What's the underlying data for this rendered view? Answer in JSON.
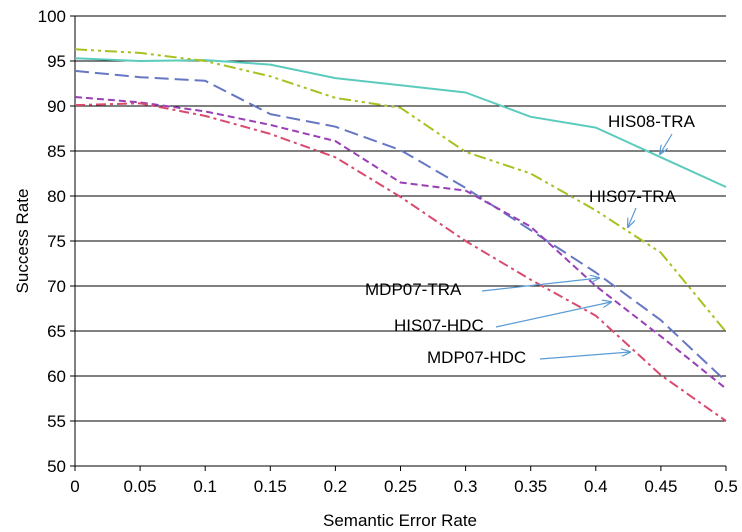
{
  "chart_data": {
    "type": "line",
    "title": "",
    "xlabel": "Semantic Error Rate",
    "ylabel": "Success Rate",
    "xlim": [
      0,
      0.5
    ],
    "ylim": [
      50,
      100
    ],
    "grid": "horizontal",
    "x_ticks": [
      "0",
      "0.05",
      "0.1",
      "0.15",
      "0.2",
      "0.25",
      "0.3",
      "0.35",
      "0.4",
      "0.45",
      "0.5"
    ],
    "y_ticks": [
      "50",
      "55",
      "60",
      "65",
      "70",
      "75",
      "80",
      "85",
      "90",
      "95",
      "100"
    ],
    "x": [
      0,
      0.05,
      0.1,
      0.15,
      0.2,
      0.25,
      0.3,
      0.35,
      0.4,
      0.45,
      0.5
    ],
    "series": [
      {
        "name": "HIS08-TRA",
        "color": "#5bcbbd",
        "dash": "solid",
        "values": [
          95.3,
          95.0,
          95.1,
          94.6,
          93.1,
          92.3,
          91.5,
          88.8,
          87.6,
          84.3,
          81.0
        ]
      },
      {
        "name": "HIS07-TRA",
        "color": "#a8c020",
        "dash": "dash-dot-dot",
        "values": [
          96.3,
          95.9,
          95.0,
          93.3,
          90.9,
          89.8,
          84.9,
          82.5,
          78.4,
          73.7,
          64.9
        ]
      },
      {
        "name": "MDP07-TRA",
        "color": "#6677c4",
        "dash": "long-dash",
        "values": [
          93.9,
          93.2,
          92.8,
          89.1,
          87.7,
          85.1,
          80.9,
          76.2,
          71.5,
          66.2,
          59.4
        ]
      },
      {
        "name": "HIS07-HDC",
        "color": "#9a3fb5",
        "dash": "dash",
        "values": [
          91.0,
          90.4,
          89.4,
          87.9,
          86.1,
          81.5,
          80.6,
          76.6,
          70.0,
          64.4,
          58.6
        ]
      },
      {
        "name": "MDP07-HDC",
        "color": "#d94a6e",
        "dash": "dash-dot",
        "values": [
          90.1,
          90.3,
          88.9,
          86.9,
          84.3,
          79.9,
          75.0,
          70.7,
          66.7,
          60.1,
          55.0
        ]
      }
    ],
    "annotations": [
      {
        "text": "HIS08-TRA",
        "series": "HIS08-TRA"
      },
      {
        "text": "HIS07-TRA",
        "series": "HIS07-TRA"
      },
      {
        "text": "MDP07-TRA",
        "series": "MDP07-TRA"
      },
      {
        "text": "HIS07-HDC",
        "series": "HIS07-HDC"
      },
      {
        "text": "MDP07-HDC",
        "series": "MDP07-HDC"
      }
    ],
    "annotation_arrow_color": "#5b9bd5"
  }
}
